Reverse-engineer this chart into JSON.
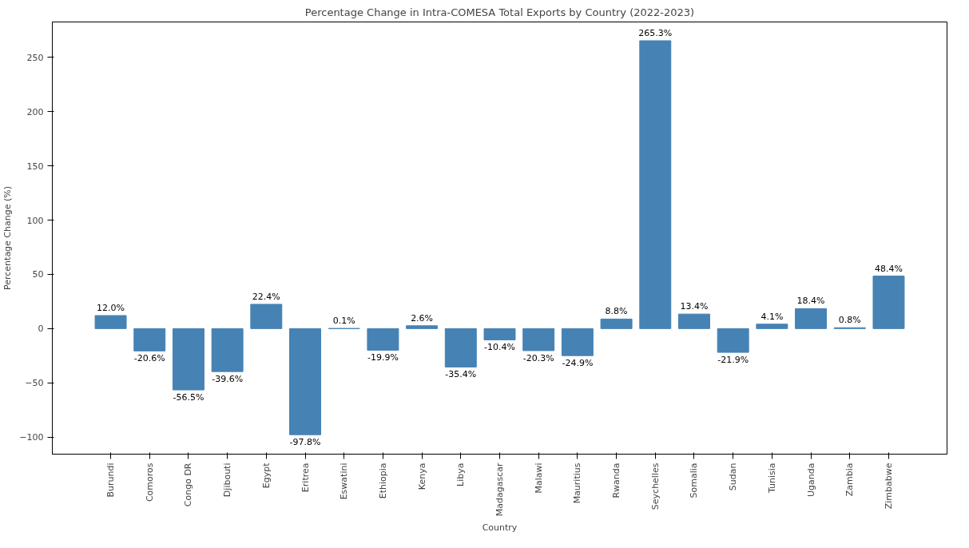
{
  "chart_data": {
    "type": "bar",
    "title": "Percentage Change in Intra-COMESA Total Exports by Country (2022-2023)",
    "xlabel": "Country",
    "ylabel": "Percentage Change (%)",
    "categories": [
      "Burundi",
      "Comoros",
      "Congo DR",
      "Djibouti",
      "Egypt",
      "Eritrea",
      "Eswatini",
      "Ethiopia",
      "Kenya",
      "Libya",
      "Madagascar",
      "Malawi",
      "Mauritius",
      "Rwanda",
      "Seychelles",
      "Somalia",
      "Sudan",
      "Tunisia",
      "Uganda",
      "Zambia",
      "Zimbabwe"
    ],
    "values": [
      12.0,
      -20.6,
      -56.5,
      -39.6,
      22.4,
      -97.8,
      0.1,
      -19.9,
      2.6,
      -35.4,
      -10.4,
      -20.3,
      -24.9,
      8.8,
      265.3,
      13.4,
      -21.9,
      4.1,
      18.4,
      0.8,
      48.4
    ],
    "value_labels": [
      "12.0%",
      "-20.6%",
      "-56.5%",
      "-39.6%",
      "22.4%",
      "-97.8%",
      "0.1%",
      "-19.9%",
      "2.6%",
      "-35.4%",
      "-10.4%",
      "-20.3%",
      "-24.9%",
      "8.8%",
      "265.3%",
      "13.4%",
      "-21.9%",
      "4.1%",
      "18.4%",
      "0.8%",
      "48.4%"
    ],
    "color": "#4682b4",
    "ylim": [
      -115.7,
      282.6
    ],
    "yticks": [
      -100,
      -50,
      0,
      50,
      100,
      150,
      200,
      250
    ],
    "grid": false
  }
}
